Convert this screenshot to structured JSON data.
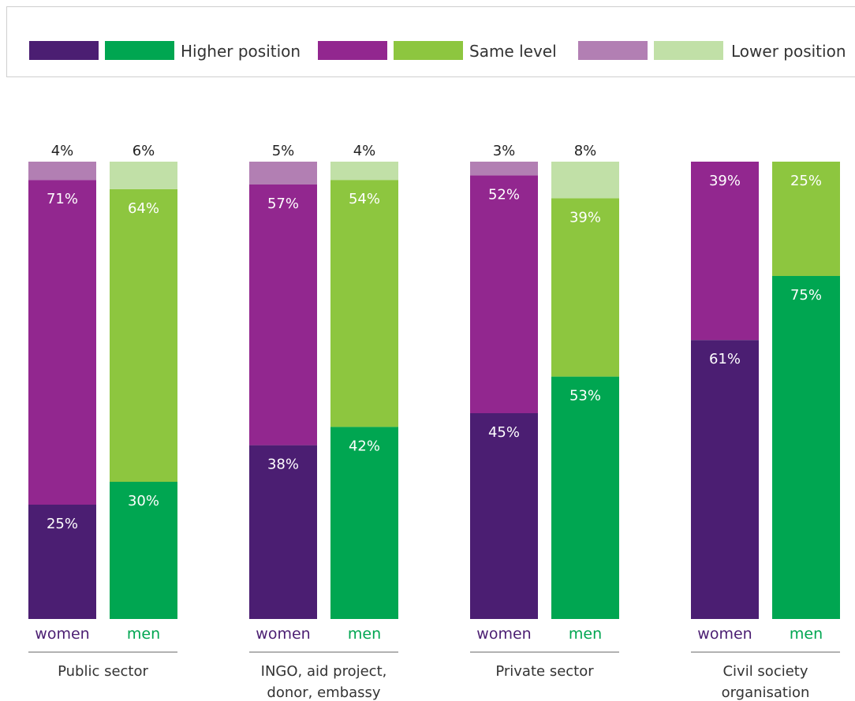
{
  "legend": {
    "items": [
      {
        "label": "Higher position",
        "women_color": "#4b1e72",
        "men_color": "#00a651"
      },
      {
        "label": "Same level",
        "women_color": "#92278f",
        "men_color": "#8dc63f"
      },
      {
        "label": "Lower position",
        "women_color": "#b27fb3",
        "men_color": "#c1e0a7"
      }
    ]
  },
  "chart_data": {
    "type": "bar",
    "stacked": true,
    "title": "",
    "xlabel": "",
    "ylabel": "",
    "ylim": [
      0,
      100
    ],
    "grid": false,
    "legend_position": "top",
    "categories": [
      "Public sector",
      "INGO, aid project, donor, embassy",
      "Private sector",
      "Civil society organisation"
    ],
    "category_lines": [
      [
        "Public sector"
      ],
      [
        "INGO, aid project,",
        "donor, embassy"
      ],
      [
        "Private sector"
      ],
      [
        "Civil society",
        "organisation"
      ]
    ],
    "bar_labels": [
      "women",
      "men"
    ],
    "series": [
      {
        "name": "Higher position",
        "women": [
          25,
          38,
          45,
          61
        ],
        "men": [
          30,
          42,
          53,
          75
        ]
      },
      {
        "name": "Same level",
        "women": [
          71,
          57,
          52,
          39
        ],
        "men": [
          64,
          54,
          39,
          25
        ]
      },
      {
        "name": "Lower position",
        "women": [
          4,
          5,
          3,
          null
        ],
        "men": [
          6,
          4,
          8,
          null
        ]
      }
    ],
    "colors": {
      "women": [
        "#4b1e72",
        "#92278f",
        "#b27fb3"
      ],
      "men": [
        "#00a651",
        "#8dc63f",
        "#c1e0a7"
      ],
      "women_text": "#4b1e72",
      "men_text": "#00a651"
    }
  }
}
